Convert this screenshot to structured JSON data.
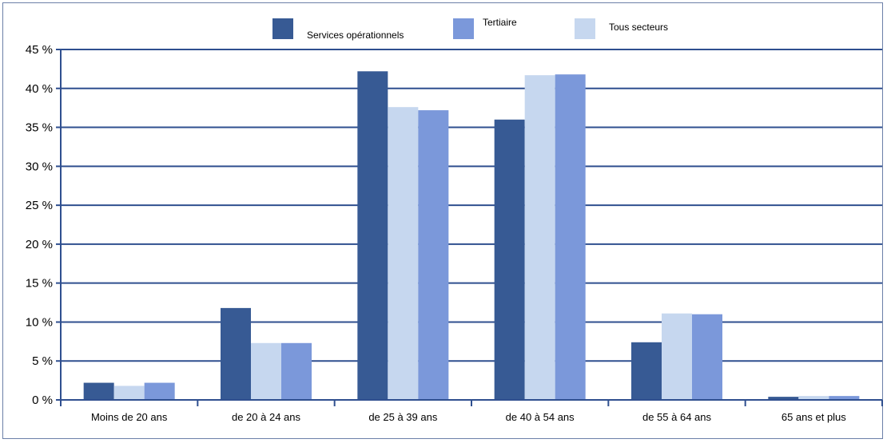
{
  "chart_data": {
    "type": "bar",
    "categories": [
      "Moins de 20 ans",
      "de 20 à 24 ans",
      "de 25 à 39 ans",
      "de 40 à 54 ans",
      "de 55 à 64 ans",
      "65 ans et plus"
    ],
    "series": [
      {
        "name": "Services opérationnels",
        "color": "#375a94",
        "values": [
          2.2,
          11.8,
          42.2,
          36.0,
          7.4,
          0.4
        ]
      },
      {
        "name": "Tous secteurs",
        "color": "#c6d7ef",
        "values": [
          1.8,
          7.3,
          37.6,
          41.7,
          11.1,
          0.5
        ]
      },
      {
        "name": "Tertiaire",
        "color": "#7b98da",
        "values": [
          2.2,
          7.3,
          37.2,
          41.8,
          11.0,
          0.5
        ]
      }
    ],
    "legend_order": [
      "Services opérationnels",
      "Tertiaire",
      "Tous secteurs"
    ],
    "y_ticks": [
      "0 %",
      "5 %",
      "10 %",
      "15 %",
      "20 %",
      "25 %",
      "30 %",
      "35 %",
      "40 %",
      "45 %"
    ],
    "ylim": [
      0,
      45
    ],
    "ystep": 5,
    "grid": true,
    "legend_position": "top-center",
    "gridline_color": "#2f4f8f"
  }
}
